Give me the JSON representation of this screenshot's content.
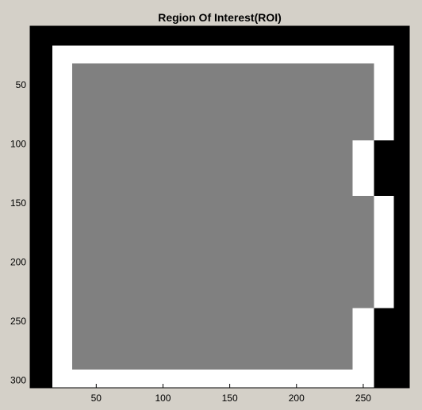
{
  "chart_data": {
    "type": "heatmap",
    "title": "Region Of Interest(ROI)",
    "xlabel": "",
    "ylabel": "",
    "xlim": [
      0.5,
      284.5
    ],
    "ylim": [
      0.5,
      306.5
    ],
    "y_reversed": true,
    "grid": false,
    "x_ticks": [
      50,
      100,
      150,
      200,
      250
    ],
    "y_ticks": [
      50,
      100,
      150,
      200,
      250,
      300
    ],
    "levels": {
      "black": "#000000",
      "white": "#ffffff",
      "gray": "#808080"
    },
    "regions": [
      {
        "level": "white",
        "x": [
          17,
          273
        ],
        "y": [
          17,
          306
        ]
      },
      {
        "level": "black",
        "x": [
          258,
          273
        ],
        "y": [
          97,
          144
        ]
      },
      {
        "level": "black",
        "x": [
          258,
          273
        ],
        "y": [
          239,
          306
        ]
      },
      {
        "level": "gray",
        "x": [
          32,
          258
        ],
        "y": [
          32,
          97
        ]
      },
      {
        "level": "gray",
        "x": [
          32,
          242
        ],
        "y": [
          97,
          144
        ]
      },
      {
        "level": "gray",
        "x": [
          32,
          258
        ],
        "y": [
          144,
          239
        ]
      },
      {
        "level": "gray",
        "x": [
          32,
          242
        ],
        "y": [
          239,
          291
        ]
      }
    ]
  }
}
